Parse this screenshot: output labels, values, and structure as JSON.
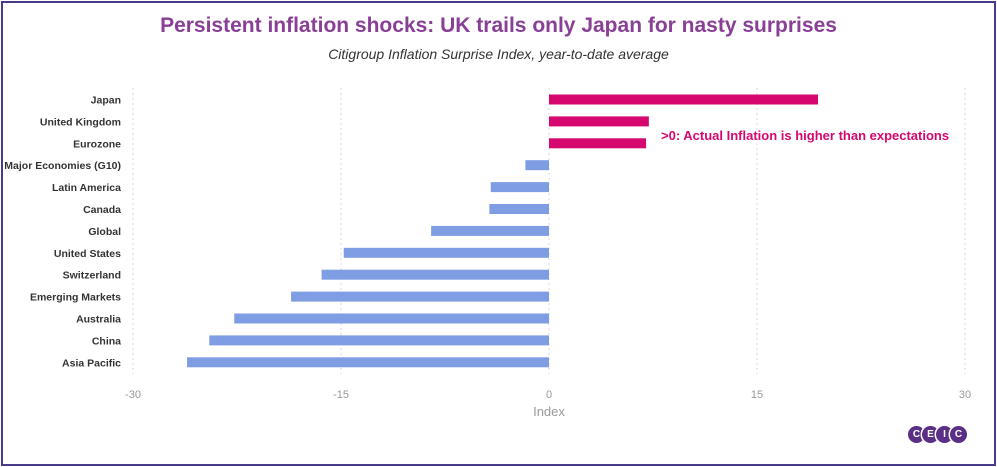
{
  "title": "Persistent inflation shocks: UK trails only Japan for nasty surprises",
  "subtitle": "Citigroup Inflation Surprise Index, year-to-date average",
  "annotation": ">0: Actual Inflation is higher than expectations",
  "logo_letters": [
    "C",
    "E",
    "I",
    "C"
  ],
  "colors": {
    "positive": "#d6076f",
    "negative": "#7f9de3",
    "title": "#8a3f97",
    "annotation": "#d6076f",
    "grid": "#d9d9d9",
    "logo": "#5a2f86"
  },
  "chart_data": {
    "type": "bar",
    "orientation": "horizontal",
    "categories": [
      "Japan",
      "United Kingdom",
      "Eurozone",
      "Major Economies (G10)",
      "Latin America",
      "Canada",
      "Global",
      "United States",
      "Switzerland",
      "Emerging Markets",
      "Australia",
      "China",
      "Asia Pacific"
    ],
    "values": [
      19.4,
      7.2,
      7.0,
      -1.7,
      -4.2,
      -4.3,
      -8.5,
      -14.8,
      -16.4,
      -18.6,
      -22.7,
      -24.5,
      -26.1
    ],
    "xlabel": "Index",
    "ylabel": "",
    "xlim": [
      -30,
      30
    ],
    "xticks": [
      -30,
      -15,
      0,
      15,
      30
    ],
    "grid": "vertical dashed"
  }
}
